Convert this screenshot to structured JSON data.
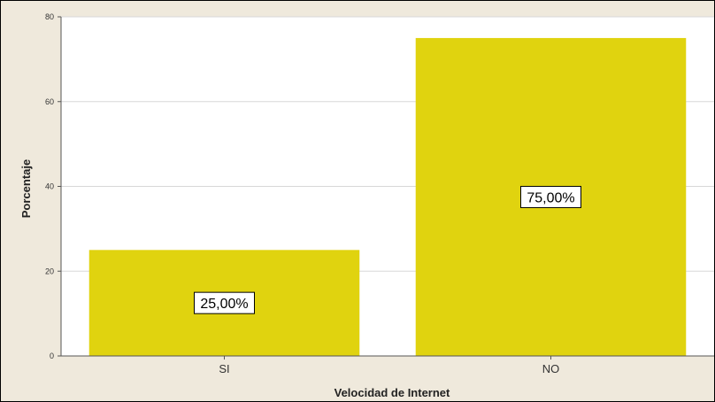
{
  "chart_data": {
    "type": "bar",
    "title": "",
    "xlabel": "Velocidad de Internet",
    "ylabel": "Porcentaje",
    "categories": [
      "SI",
      "NO"
    ],
    "values": [
      25,
      75
    ],
    "data_labels": [
      "25,00%",
      "75,00%"
    ],
    "ylim": [
      0,
      80
    ],
    "yticks": [
      0,
      20,
      40,
      60,
      80
    ],
    "ytick_labels": [
      "0",
      "20",
      "40",
      "60",
      "80"
    ],
    "grid": true,
    "bar_color": "#e0d30f",
    "plot_background": "#ffffff",
    "frame_background": "#efe9dc",
    "gridline_color": "#d8d8d8"
  }
}
